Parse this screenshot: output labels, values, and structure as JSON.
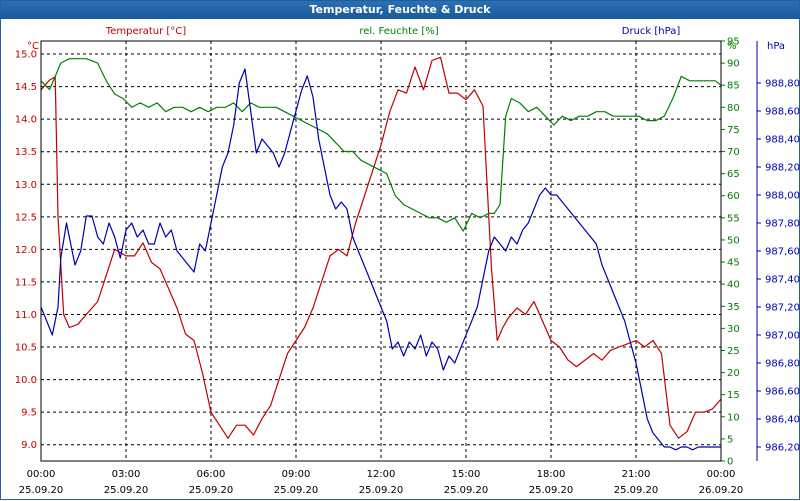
{
  "window": {
    "title": "Temperatur, Feuchte & Druck"
  },
  "legend": {
    "temp": "Temperatur [°C]",
    "hum": "rel. Feuchte [%]",
    "press": "Druck [hPa]"
  },
  "units": {
    "left": "°C",
    "right1": "%",
    "right2": "hPa"
  },
  "colors": {
    "temp": "#c00000",
    "hum": "#008000",
    "press": "#0000b0",
    "grid": "#000000",
    "title_bg": "#1f5f9e"
  },
  "chart_data": {
    "type": "line",
    "title": "Temperatur, Feuchte & Druck",
    "grid": true,
    "x_ticks": [
      {
        "time": "00:00",
        "date": "25.09.20"
      },
      {
        "time": "03:00",
        "date": "25.09.20"
      },
      {
        "time": "06:00",
        "date": "25.09.20"
      },
      {
        "time": "09:00",
        "date": "25.09.20"
      },
      {
        "time": "12:00",
        "date": "25.09.20"
      },
      {
        "time": "15:00",
        "date": "25.09.20"
      },
      {
        "time": "18:00",
        "date": "25.09.20"
      },
      {
        "time": "21:00",
        "date": "25.09.20"
      },
      {
        "time": "00:00",
        "date": "26.09.20"
      }
    ],
    "xlim": [
      0,
      24
    ],
    "axes": {
      "temp": {
        "min": 8.75,
        "max": 15.2,
        "ticks": [
          "9.0",
          "9.5",
          "10.0",
          "10.5",
          "11.0",
          "11.5",
          "12.0",
          "12.5",
          "13.0",
          "13.5",
          "14.0",
          "14.5",
          "15.0"
        ]
      },
      "hum": {
        "min": 0,
        "max": 95,
        "ticks": [
          "0",
          "5",
          "10",
          "15",
          "20",
          "25",
          "30",
          "35",
          "40",
          "45",
          "50",
          "55",
          "60",
          "65",
          "70",
          "75",
          "80",
          "85",
          "90",
          "95"
        ]
      },
      "press": {
        "min": 986.1,
        "max": 989.1,
        "ticks": [
          "986,20",
          "986,40",
          "986,60",
          "986,80",
          "987,00",
          "987,20",
          "987,40",
          "987,60",
          "987,80",
          "988,00",
          "988,20",
          "988,40",
          "988,60",
          "988,80"
        ]
      }
    },
    "series": [
      {
        "name": "Temperatur [°C]",
        "axis": "temp",
        "x": [
          0,
          0.3,
          0.5,
          0.6,
          0.8,
          1.0,
          1.3,
          1.6,
          2.0,
          2.3,
          2.6,
          3.0,
          3.3,
          3.6,
          3.9,
          4.2,
          4.5,
          4.8,
          5.1,
          5.4,
          5.7,
          6.0,
          6.3,
          6.6,
          6.9,
          7.2,
          7.5,
          7.8,
          8.1,
          8.4,
          8.7,
          9.0,
          9.3,
          9.6,
          9.9,
          10.2,
          10.5,
          10.8,
          11.1,
          11.4,
          11.7,
          12.0,
          12.3,
          12.6,
          12.9,
          13.2,
          13.5,
          13.8,
          14.1,
          14.4,
          14.7,
          15.0,
          15.3,
          15.6,
          15.9,
          16.1,
          16.3,
          16.5,
          16.8,
          17.1,
          17.4,
          17.7,
          18.0,
          18.3,
          18.6,
          18.9,
          19.2,
          19.5,
          19.8,
          20.1,
          20.4,
          20.7,
          21.0,
          21.3,
          21.6,
          21.9,
          22.2,
          22.5,
          22.8,
          23.1,
          23.4,
          23.7,
          24.0
        ],
        "y": [
          14.45,
          14.6,
          14.65,
          12.5,
          11.0,
          10.8,
          10.85,
          11.0,
          11.2,
          11.6,
          12.0,
          11.9,
          11.9,
          12.1,
          11.8,
          11.7,
          11.4,
          11.1,
          10.7,
          10.6,
          10.1,
          9.5,
          9.3,
          9.1,
          9.3,
          9.3,
          9.15,
          9.4,
          9.6,
          10.0,
          10.4,
          10.6,
          10.8,
          11.1,
          11.5,
          11.9,
          12.0,
          11.9,
          12.4,
          12.8,
          13.2,
          13.6,
          14.1,
          14.45,
          14.4,
          14.8,
          14.45,
          14.9,
          14.95,
          14.4,
          14.4,
          14.3,
          14.45,
          14.2,
          11.7,
          10.6,
          10.8,
          10.95,
          11.1,
          11.0,
          11.2,
          10.9,
          10.6,
          10.5,
          10.3,
          10.2,
          10.3,
          10.4,
          10.3,
          10.45,
          10.5,
          10.55,
          10.6,
          10.5,
          10.6,
          10.4,
          9.3,
          9.1,
          9.2,
          9.5,
          9.5,
          9.55,
          9.7
        ]
      },
      {
        "name": "rel. Feuchte [%]",
        "axis": "hum",
        "x": [
          0,
          0.3,
          0.5,
          0.7,
          1.0,
          1.3,
          1.6,
          2.0,
          2.3,
          2.6,
          2.9,
          3.2,
          3.5,
          3.8,
          4.1,
          4.4,
          4.7,
          5.0,
          5.3,
          5.6,
          5.9,
          6.2,
          6.5,
          6.8,
          7.1,
          7.4,
          7.7,
          8.0,
          8.3,
          8.6,
          8.9,
          9.2,
          9.5,
          9.8,
          10.1,
          10.4,
          10.7,
          11.0,
          11.3,
          11.6,
          11.9,
          12.2,
          12.5,
          12.8,
          13.1,
          13.4,
          13.7,
          14.0,
          14.3,
          14.6,
          14.9,
          15.2,
          15.5,
          15.8,
          16.0,
          16.2,
          16.4,
          16.6,
          16.9,
          17.2,
          17.5,
          17.8,
          18.1,
          18.4,
          18.7,
          19.0,
          19.3,
          19.6,
          19.9,
          20.2,
          20.5,
          20.8,
          21.1,
          21.4,
          21.7,
          22.0,
          22.3,
          22.6,
          22.9,
          23.2,
          23.5,
          23.8,
          24.0
        ],
        "y": [
          86,
          84,
          87,
          90,
          91,
          91,
          91,
          90,
          86,
          83,
          82,
          80,
          81,
          80,
          81,
          79,
          80,
          80,
          79,
          80,
          79,
          80,
          80,
          81,
          79,
          81,
          80,
          80,
          80,
          79,
          78,
          77,
          76,
          75,
          74,
          72,
          70,
          70,
          68,
          67,
          66,
          65,
          60,
          58,
          57,
          56,
          55,
          55,
          54,
          55,
          52,
          56,
          55,
          56,
          56,
          58,
          78,
          82,
          81,
          79,
          80,
          78,
          76,
          78,
          77,
          78,
          78,
          79,
          79,
          78,
          78,
          78,
          78,
          77,
          77,
          78,
          82,
          87,
          86,
          86,
          86,
          86,
          85
        ]
      },
      {
        "name": "Druck [hPa]",
        "axis": "press",
        "x": [
          0,
          0.2,
          0.4,
          0.6,
          0.7,
          0.9,
          1.0,
          1.2,
          1.4,
          1.6,
          1.8,
          2.0,
          2.2,
          2.4,
          2.6,
          2.8,
          3.0,
          3.2,
          3.4,
          3.6,
          3.8,
          4.0,
          4.2,
          4.4,
          4.6,
          4.8,
          5.0,
          5.2,
          5.4,
          5.6,
          5.8,
          6.0,
          6.2,
          6.4,
          6.6,
          6.8,
          7.0,
          7.2,
          7.4,
          7.6,
          7.8,
          8.0,
          8.2,
          8.4,
          8.6,
          8.8,
          9.0,
          9.2,
          9.4,
          9.6,
          9.8,
          10.0,
          10.2,
          10.4,
          10.6,
          10.8,
          11.0,
          11.2,
          11.4,
          11.6,
          11.8,
          12.0,
          12.2,
          12.4,
          12.6,
          12.8,
          13.0,
          13.2,
          13.4,
          13.6,
          13.8,
          14.0,
          14.2,
          14.4,
          14.6,
          14.8,
          15.0,
          15.2,
          15.4,
          15.6,
          15.8,
          16.0,
          16.2,
          16.4,
          16.6,
          16.8,
          17.0,
          17.2,
          17.4,
          17.6,
          17.8,
          18.0,
          18.2,
          18.4,
          18.6,
          18.8,
          19.0,
          19.2,
          19.4,
          19.6,
          19.8,
          20.0,
          20.2,
          20.4,
          20.6,
          20.8,
          21.0,
          21.2,
          21.4,
          21.6,
          21.8,
          22.0,
          22.2,
          22.4,
          22.6,
          22.8,
          23.0,
          23.2,
          23.4,
          23.6,
          23.8,
          24.0
        ],
        "y": [
          987.2,
          987.1,
          987.0,
          987.2,
          987.55,
          987.8,
          987.7,
          987.5,
          987.6,
          987.85,
          987.85,
          987.7,
          987.65,
          987.8,
          987.7,
          987.55,
          987.75,
          987.8,
          987.7,
          987.75,
          987.65,
          987.65,
          987.8,
          987.7,
          987.75,
          987.6,
          987.55,
          987.5,
          987.45,
          987.65,
          987.6,
          987.8,
          988.0,
          988.2,
          988.3,
          988.5,
          988.8,
          988.9,
          988.6,
          988.3,
          988.4,
          988.35,
          988.3,
          988.2,
          988.3,
          988.45,
          988.6,
          988.75,
          988.85,
          988.7,
          988.4,
          988.2,
          988.0,
          987.9,
          987.95,
          987.9,
          987.7,
          987.6,
          987.5,
          987.4,
          987.3,
          987.2,
          987.1,
          986.9,
          986.95,
          986.85,
          986.95,
          986.9,
          987.0,
          986.85,
          986.95,
          986.9,
          986.75,
          986.85,
          986.8,
          986.9,
          987.0,
          987.1,
          987.2,
          987.4,
          987.6,
          987.7,
          987.65,
          987.6,
          987.7,
          987.65,
          987.75,
          987.8,
          987.9,
          988.0,
          988.05,
          988.0,
          988.0,
          987.95,
          987.9,
          987.85,
          987.8,
          987.75,
          987.7,
          987.65,
          987.5,
          987.4,
          987.3,
          987.2,
          987.1,
          986.95,
          986.8,
          986.6,
          986.4,
          986.3,
          986.25,
          986.2,
          986.2,
          986.18,
          986.2,
          986.2,
          986.18,
          986.2,
          986.2,
          986.2,
          986.2,
          986.2
        ]
      }
    ]
  }
}
